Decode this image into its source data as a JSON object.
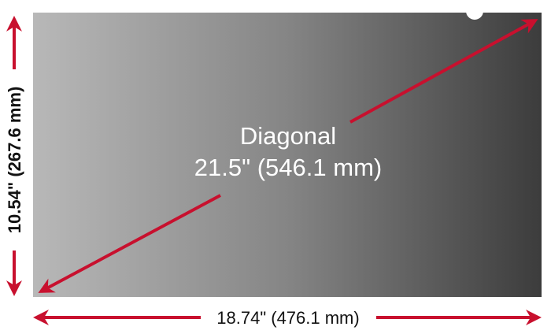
{
  "diagonal": {
    "title": "Diagonal",
    "value": "21.5\" (546.1 mm)"
  },
  "height_label": "10.54\" (267.6 mm)",
  "width_label": "18.74\" (476.1 mm)",
  "colors": {
    "arrow": "#c8102e",
    "screen_light": "#b5b5b5",
    "screen_dark": "#3e3e3e",
    "text_on_screen": "#ffffff",
    "text_dim": "#111111"
  }
}
